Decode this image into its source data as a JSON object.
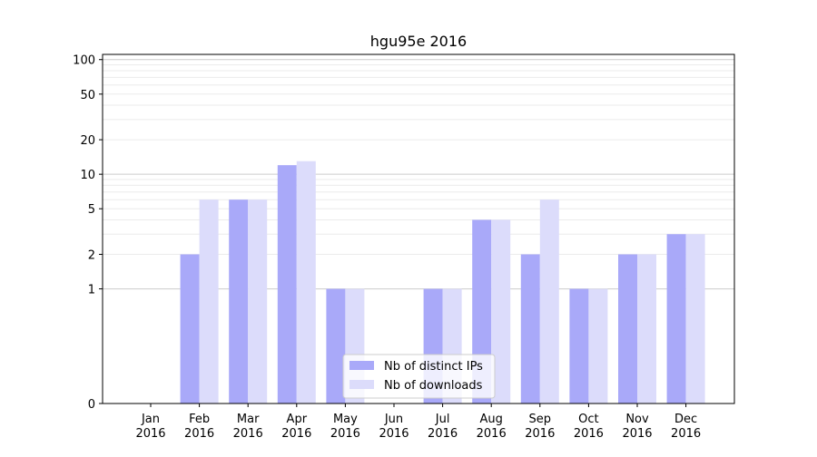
{
  "chart_data": {
    "type": "bar",
    "title": "hgu95e 2016",
    "xlabel": "",
    "ylabel": "",
    "scale": "symlog",
    "categories": [
      [
        "Jan",
        "2016"
      ],
      [
        "Feb",
        "2016"
      ],
      [
        "Mar",
        "2016"
      ],
      [
        "Apr",
        "2016"
      ],
      [
        "May",
        "2016"
      ],
      [
        "Jun",
        "2016"
      ],
      [
        "Jul",
        "2016"
      ],
      [
        "Aug",
        "2016"
      ],
      [
        "Sep",
        "2016"
      ],
      [
        "Oct",
        "2016"
      ],
      [
        "Nov",
        "2016"
      ],
      [
        "Dec",
        "2016"
      ]
    ],
    "series": [
      {
        "name": "Nb of distinct IPs",
        "color": "#a9a9f9",
        "values": [
          0,
          2,
          6,
          12,
          1,
          0,
          1,
          4,
          2,
          1,
          2,
          3
        ]
      },
      {
        "name": "Nb of downloads",
        "color": "#dcdcfb",
        "values": [
          0,
          6,
          6,
          13,
          1,
          0,
          1,
          4,
          6,
          1,
          2,
          3
        ]
      }
    ],
    "yticks": [
      "0",
      "1",
      "2",
      "5",
      "10",
      "20",
      "50",
      "100"
    ],
    "legend": "lower-center",
    "grid": true
  }
}
